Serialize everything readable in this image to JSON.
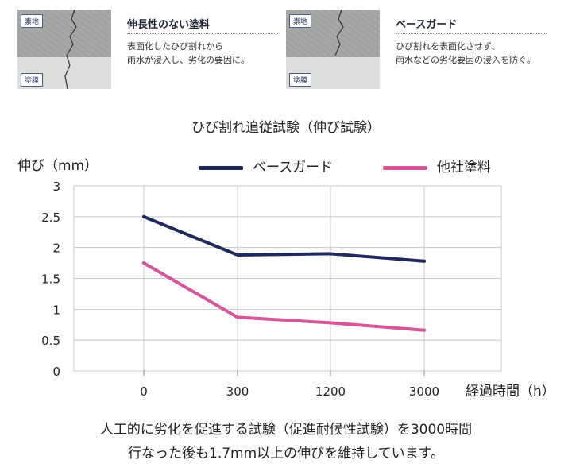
{
  "panels": [
    {
      "title": "伸長性のない塗料",
      "lines": [
        "表面化したひび割れから",
        "雨水が浸入し、劣化の要因に。"
      ],
      "tag_top": "素地",
      "tag_bottom": "塗膜"
    },
    {
      "title": "ベースガード",
      "lines": [
        "ひび割れを表面化させず、",
        "雨水などの劣化要因の浸入を防ぐ。"
      ],
      "tag_top": "素地",
      "tag_bottom": "塗膜"
    }
  ],
  "chart_data": {
    "type": "line",
    "title": "ひび割れ追従試験（伸び試験）",
    "ylabel": "伸び（mm）",
    "xlabel": "経過時間（h）",
    "categories": [
      "0",
      "300",
      "1200",
      "3000"
    ],
    "yticks": [
      "0",
      "0.5",
      "1",
      "1.5",
      "2",
      "2.5",
      "3"
    ],
    "ylim": [
      0,
      3
    ],
    "grid": true,
    "legend_position": "top",
    "series": [
      {
        "name": "ベースガード",
        "values": [
          2.5,
          1.88,
          1.9,
          1.78
        ],
        "color": "#1f2a5c"
      },
      {
        "name": "他社塗料",
        "values": [
          1.75,
          0.87,
          0.78,
          0.66
        ],
        "color": "#d6559b"
      }
    ]
  },
  "caption": [
    "人工的に劣化を促進する試験（促進耐候性試験）を3000時間",
    "行なった後も1.7mm以上の伸びを維持しています。"
  ]
}
